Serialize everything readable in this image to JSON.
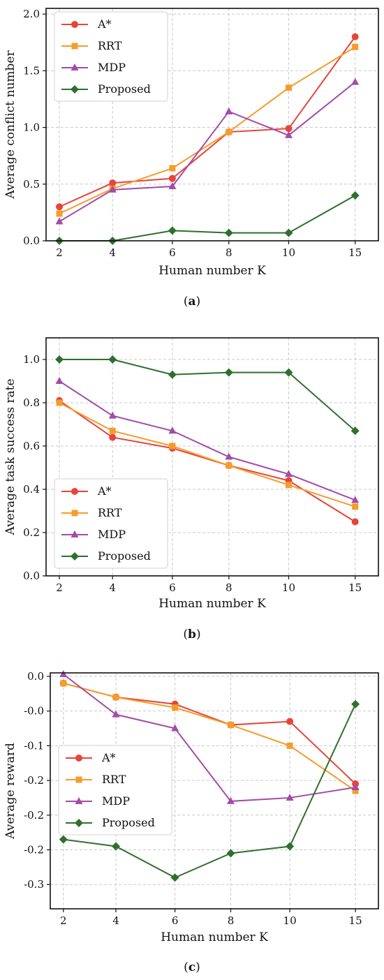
{
  "colors": {
    "astar": "#e8443a",
    "rrt": "#f59c2a",
    "mdp": "#a34ba8",
    "proposed": "#2f6f2f",
    "grid": "#c9c9c9",
    "frame": "#111111"
  },
  "chart_data": [
    {
      "type": "line",
      "caption": "a",
      "xlabel": "Human number K",
      "ylabel": "Average conflict number",
      "categories": [
        "2",
        "4",
        "6",
        "8",
        "10",
        "15"
      ],
      "ylim": [
        0,
        2.05
      ],
      "yticks": [
        "0.0",
        "0.5",
        "1.0",
        "1.5",
        "2.0"
      ],
      "ytick_values": [
        0,
        0.5,
        1.0,
        1.5,
        2.0
      ],
      "legend": "top-left",
      "grid": true,
      "series": [
        {
          "name": "A*",
          "marker": "circle",
          "color_key": "astar",
          "values": [
            0.3,
            0.51,
            0.55,
            0.96,
            0.99,
            1.8
          ]
        },
        {
          "name": "RRT",
          "marker": "square",
          "color_key": "rrt",
          "values": [
            0.24,
            0.46,
            0.64,
            0.96,
            1.35,
            1.71
          ]
        },
        {
          "name": "MDP",
          "marker": "triangle",
          "color_key": "mdp",
          "values": [
            0.17,
            0.45,
            0.48,
            1.14,
            0.93,
            1.4
          ]
        },
        {
          "name": "Proposed",
          "marker": "diamond",
          "color_key": "proposed",
          "values": [
            0.0,
            0.0,
            0.09,
            0.07,
            0.07,
            0.4
          ]
        }
      ]
    },
    {
      "type": "line",
      "caption": "b",
      "xlabel": "Human number K",
      "ylabel": "Average task success rate",
      "categories": [
        "2",
        "4",
        "6",
        "8",
        "10",
        "15"
      ],
      "ylim": [
        0,
        1.1
      ],
      "yticks": [
        "0.0",
        "0.2",
        "0.4",
        "0.6",
        "0.8",
        "1.0"
      ],
      "ytick_values": [
        0,
        0.2,
        0.4,
        0.6,
        0.8,
        1.0
      ],
      "legend": "bottom-left",
      "grid": true,
      "series": [
        {
          "name": "A*",
          "marker": "circle",
          "color_key": "astar",
          "values": [
            0.81,
            0.64,
            0.59,
            0.51,
            0.44,
            0.25
          ]
        },
        {
          "name": "RRT",
          "marker": "square",
          "color_key": "rrt",
          "values": [
            0.8,
            0.67,
            0.6,
            0.51,
            0.42,
            0.32
          ]
        },
        {
          "name": "MDP",
          "marker": "triangle",
          "color_key": "mdp",
          "values": [
            0.9,
            0.74,
            0.67,
            0.55,
            0.47,
            0.35
          ]
        },
        {
          "name": "Proposed",
          "marker": "diamond",
          "color_key": "proposed",
          "values": [
            1.0,
            1.0,
            0.93,
            0.94,
            0.94,
            0.67
          ]
        }
      ]
    },
    {
      "type": "line",
      "caption": "c",
      "xlabel": "Human number K",
      "ylabel": "Average reward",
      "categories": [
        "2",
        "4",
        "6",
        "8",
        "10",
        "15"
      ],
      "ylim": [
        -0.335,
        0.005
      ],
      "yticks": [
        "0.0",
        "-0.0",
        "-0.1",
        "-0.2",
        "-0.2",
        "-0.2",
        "-0.3"
      ],
      "ytick_values": [
        0.0,
        -0.05,
        -0.1,
        -0.15,
        -0.2,
        -0.25,
        -0.3
      ],
      "legend": "middle-left",
      "grid": true,
      "series": [
        {
          "name": "A*",
          "marker": "circle",
          "color_key": "astar",
          "values": [
            -0.01,
            -0.03,
            -0.04,
            -0.07,
            -0.065,
            -0.155
          ]
        },
        {
          "name": "RRT",
          "marker": "square",
          "color_key": "rrt",
          "values": [
            -0.01,
            -0.03,
            -0.045,
            -0.07,
            -0.1,
            -0.165
          ]
        },
        {
          "name": "MDP",
          "marker": "triangle",
          "color_key": "mdp",
          "values": [
            0.003,
            -0.055,
            -0.075,
            -0.18,
            -0.175,
            -0.16
          ]
        },
        {
          "name": "Proposed",
          "marker": "diamond",
          "color_key": "proposed",
          "values": [
            -0.235,
            -0.245,
            -0.29,
            -0.255,
            -0.245,
            -0.04
          ]
        }
      ]
    }
  ]
}
